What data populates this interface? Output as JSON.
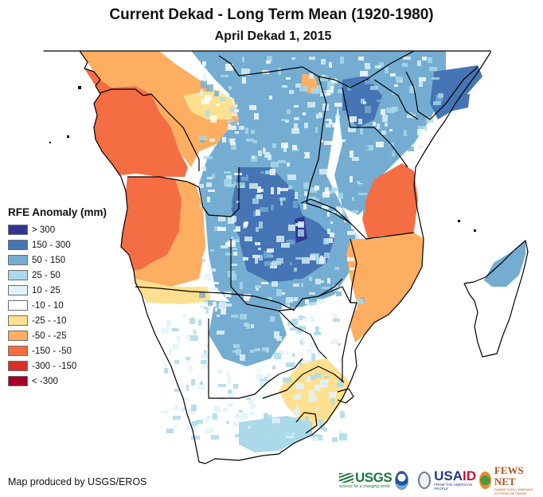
{
  "header": {
    "title": "Current Dekad - Long Term Mean (1920-1980)",
    "subtitle": "April Dekad 1, 2015"
  },
  "legend": {
    "title": "RFE Anomaly (mm)",
    "classes": [
      {
        "label": "> 300",
        "color": "#313695"
      },
      {
        "label": "150 - 300",
        "color": "#4575b4"
      },
      {
        "label": "50 - 150",
        "color": "#74add1"
      },
      {
        "label": "25 - 50",
        "color": "#abd9e9"
      },
      {
        "label": "10 - 25",
        "color": "#e0f3f8"
      },
      {
        "label": "-10 - 10",
        "color": "#ffffff"
      },
      {
        "label": "-25 - -10",
        "color": "#fee090"
      },
      {
        "label": "-50 - -25",
        "color": "#fdae61"
      },
      {
        "label": "-150 - -50",
        "color": "#f46d43"
      },
      {
        "label": "-300 - -150",
        "color": "#d73027"
      },
      {
        "label": "< -300",
        "color": "#a50026"
      }
    ]
  },
  "map": {
    "region": "Southern and Central Africa with Madagascar",
    "border_color": "#000000",
    "ocean_color": "#ffffff",
    "regions": [
      {
        "name": "west-central-coast-dry",
        "class": "-150 - -50"
      },
      {
        "name": "gabon-congo-moderate-dry",
        "class": "-50 - -25"
      },
      {
        "name": "angola-dry",
        "class": "-150 - -50"
      },
      {
        "name": "angola-south-dry",
        "class": "-50 - -25"
      },
      {
        "name": "angola-namibia-border-slight-dry",
        "class": "-25 - -10"
      },
      {
        "name": "drc-zambia-wet",
        "class": "50 - 150"
      },
      {
        "name": "zambia-core-wet",
        "class": "150 - 300"
      },
      {
        "name": "botswana-wet",
        "class": "50 - 150"
      },
      {
        "name": "east-africa-wet",
        "class": "50 - 150"
      },
      {
        "name": "somalia-wet",
        "class": "150 - 300"
      },
      {
        "name": "tanzania-dry",
        "class": "-150 - -50"
      },
      {
        "name": "mozambique-dry",
        "class": "-50 - -25"
      },
      {
        "name": "south-africa-east-slight-dry",
        "class": "-25 - -10"
      },
      {
        "name": "south-africa-south-wet",
        "class": "25 - 50"
      },
      {
        "name": "madagascar-north-wet",
        "class": "50 - 150"
      }
    ]
  },
  "footer": {
    "credit": "Map produced by USGS/EROS",
    "logos": {
      "usgs": "USGS",
      "usgs_tagline": "science for a changing world",
      "usaid_a": "USA",
      "usaid_b": "ID",
      "usaid_tagline": "FROM THE AMERICAN PEOPLE",
      "fews": "FEWS NET",
      "fews_tagline": "FAMINE EARLY WARNING SYSTEMS NETWORK"
    }
  }
}
